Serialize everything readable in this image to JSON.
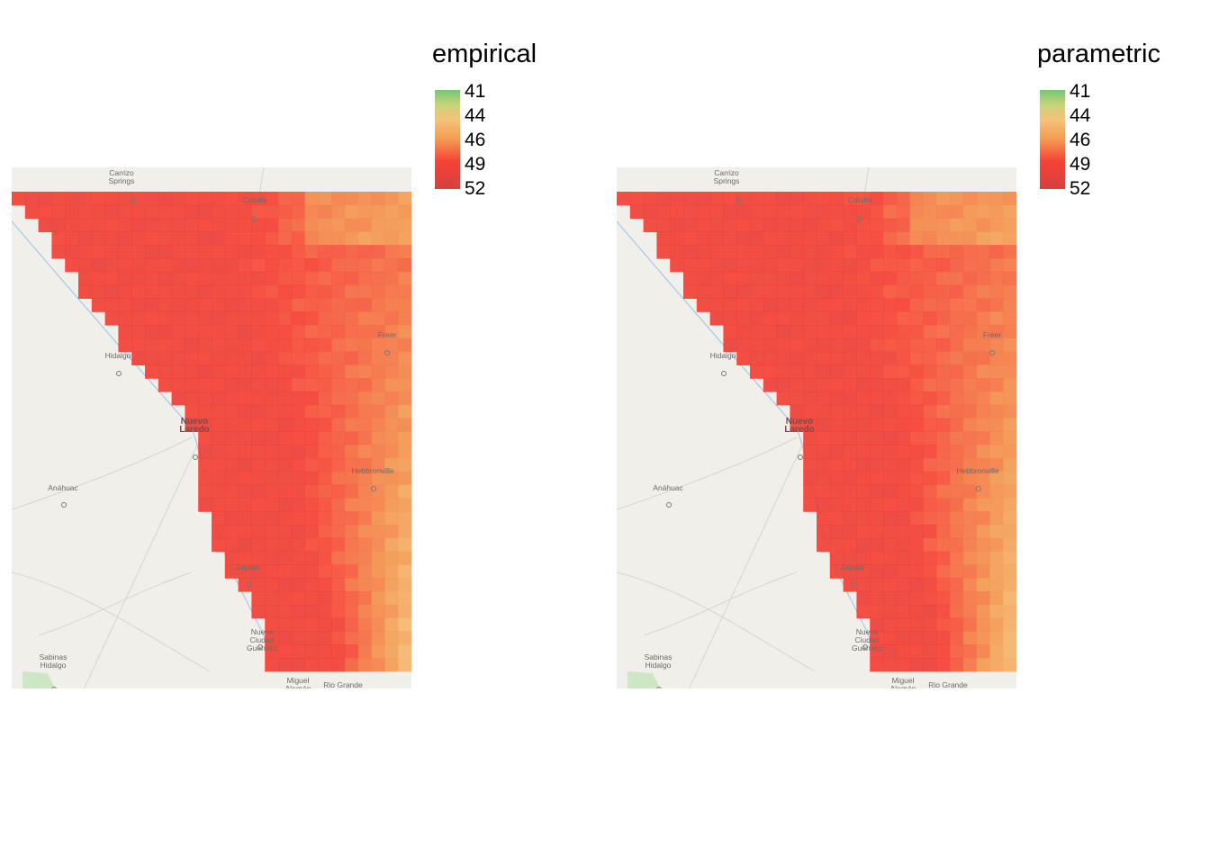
{
  "panels": [
    {
      "legend_title": "empirical",
      "legend_ticks": [
        "41",
        "44",
        "46",
        "49",
        "52"
      ]
    },
    {
      "legend_title": "parametric",
      "legend_ticks": [
        "41",
        "44",
        "46",
        "49",
        "52"
      ]
    }
  ],
  "colorscale": [
    "#74c96f",
    "#f6c27a",
    "#f49a52",
    "#f64236",
    "#d64040"
  ],
  "places": [
    {
      "key": "carrizo",
      "label": "Carrizo\nSprings"
    },
    {
      "key": "cotulla",
      "label": "Cotulla"
    },
    {
      "key": "freer",
      "label": "Freer"
    },
    {
      "key": "hidalgo_tx",
      "label": "Hidalgo"
    },
    {
      "key": "nuevo_laredo",
      "label": "Nuevo\nLaredo"
    },
    {
      "key": "anahuac",
      "label": "Anáhuac"
    },
    {
      "key": "hebbronville",
      "label": "Hebbronville"
    },
    {
      "key": "zapata",
      "label": "Zapata"
    },
    {
      "key": "guerrero",
      "label": "Nueva\nCiudad\nGuerrero"
    },
    {
      "key": "sabinas",
      "label": "Sabinas\nHidalgo"
    },
    {
      "key": "miguel",
      "label": "Miguel\nAlemán"
    },
    {
      "key": "riogrande",
      "label": "Rio Grande"
    },
    {
      "key": "guerrero_mx",
      "label": "Guerrero"
    }
  ]
}
